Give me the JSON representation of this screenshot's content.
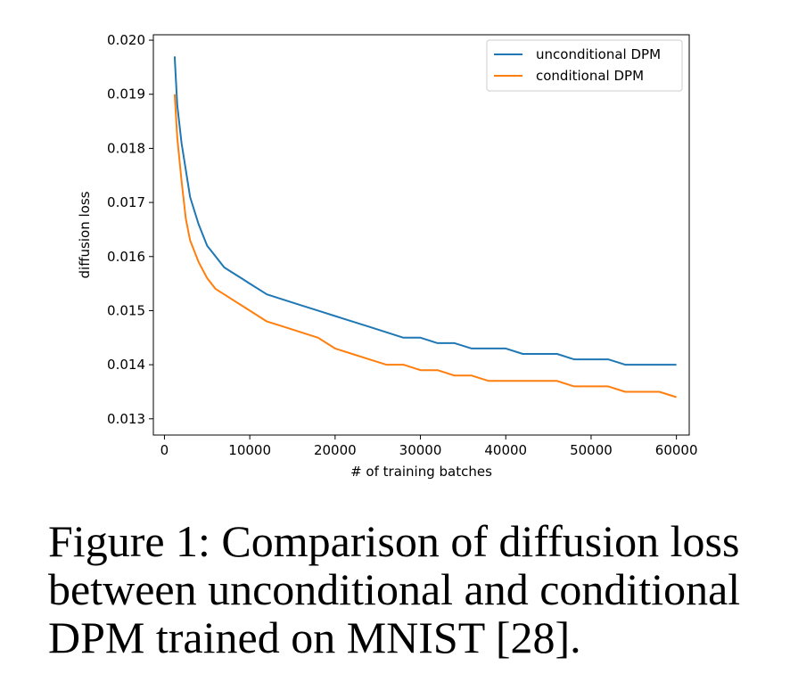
{
  "chart_data": {
    "type": "line",
    "xlabel": "# of training batches",
    "ylabel": "diffusion loss",
    "xlim": [
      -1300,
      61500
    ],
    "ylim": [
      0.0127,
      0.0201
    ],
    "xticks": [
      0,
      10000,
      20000,
      30000,
      40000,
      50000,
      60000
    ],
    "xtick_labels": [
      "0",
      "10000",
      "20000",
      "30000",
      "40000",
      "50000",
      "60000"
    ],
    "yticks": [
      0.013,
      0.014,
      0.015,
      0.016,
      0.017,
      0.018,
      0.019,
      0.02
    ],
    "ytick_labels": [
      "0.013",
      "0.014",
      "0.015",
      "0.016",
      "0.017",
      "0.018",
      "0.019",
      "0.020"
    ],
    "grid": false,
    "legend_position": "top-right",
    "series": [
      {
        "name": "unconditional DPM",
        "color": "#1f77b4",
        "x": [
          1200,
          1500,
          2000,
          2500,
          3000,
          4000,
          5000,
          6000,
          7000,
          8000,
          9000,
          10000,
          12000,
          14000,
          16000,
          18000,
          20000,
          22000,
          24000,
          26000,
          28000,
          30000,
          32000,
          34000,
          36000,
          38000,
          40000,
          42000,
          44000,
          46000,
          48000,
          50000,
          52000,
          54000,
          56000,
          58000,
          60000
        ],
        "y": [
          0.0197,
          0.0188,
          0.0181,
          0.0176,
          0.0171,
          0.0166,
          0.0162,
          0.016,
          0.0158,
          0.0157,
          0.0156,
          0.0155,
          0.0153,
          0.0152,
          0.0151,
          0.015,
          0.0149,
          0.0148,
          0.0147,
          0.0146,
          0.0145,
          0.0145,
          0.0144,
          0.0144,
          0.0143,
          0.0143,
          0.0143,
          0.0142,
          0.0142,
          0.0142,
          0.0141,
          0.0141,
          0.0141,
          0.014,
          0.014,
          0.014,
          0.014
        ]
      },
      {
        "name": "conditional DPM",
        "color": "#ff7f0e",
        "x": [
          1200,
          1500,
          2000,
          2500,
          3000,
          4000,
          5000,
          6000,
          7000,
          8000,
          9000,
          10000,
          12000,
          14000,
          16000,
          18000,
          20000,
          22000,
          24000,
          26000,
          28000,
          30000,
          32000,
          34000,
          36000,
          38000,
          40000,
          42000,
          44000,
          46000,
          48000,
          50000,
          52000,
          54000,
          56000,
          58000,
          60000
        ],
        "y": [
          0.019,
          0.0182,
          0.0174,
          0.0167,
          0.0163,
          0.0159,
          0.0156,
          0.0154,
          0.0153,
          0.0152,
          0.0151,
          0.015,
          0.0148,
          0.0147,
          0.0146,
          0.0145,
          0.0143,
          0.0142,
          0.0141,
          0.014,
          0.014,
          0.0139,
          0.0139,
          0.0138,
          0.0138,
          0.0137,
          0.0137,
          0.0137,
          0.0137,
          0.0137,
          0.0136,
          0.0136,
          0.0136,
          0.0135,
          0.0135,
          0.0135,
          0.0134
        ]
      }
    ]
  },
  "caption": "Figure 1: Comparison of diffusion loss between unconditional and conditional DPM trained on MNIST [28]."
}
